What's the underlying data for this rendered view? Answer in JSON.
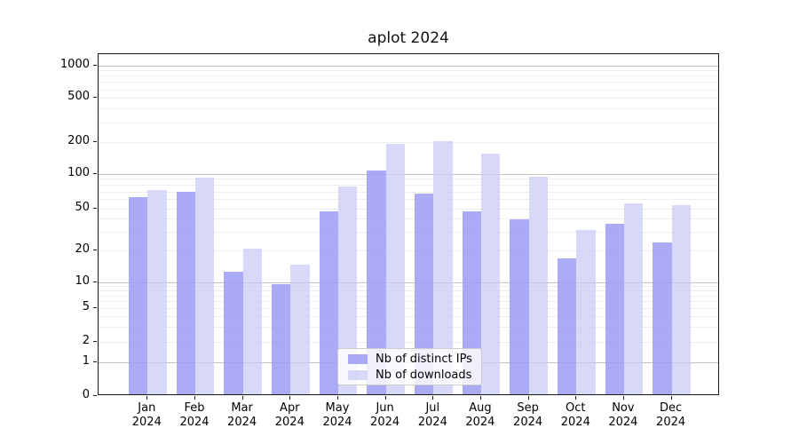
{
  "title": "aplot 2024",
  "colors": {
    "distinct_ips": "rgba(155,155,243,0.85)",
    "downloads": "rgba(199,199,247,0.70)",
    "grid_major": "#c3c3c3",
    "grid_minor": "#ededed",
    "spine": "#1a1a1a"
  },
  "legend": {
    "items": [
      {
        "label": "Nb of distinct IPs",
        "color": "rgba(155,155,243,0.85)"
      },
      {
        "label": "Nb of downloads",
        "color": "rgba(199,199,247,0.70)"
      }
    ]
  },
  "x_axis": {
    "months": [
      "Jan",
      "Feb",
      "Mar",
      "Apr",
      "May",
      "Jun",
      "Jul",
      "Aug",
      "Sep",
      "Oct",
      "Nov",
      "Dec"
    ],
    "year": "2024"
  },
  "y_axis": {
    "tick_labels": [
      "0",
      "1",
      "2",
      "5",
      "10",
      "20",
      "50",
      "100",
      "200",
      "500",
      "1000"
    ],
    "tick_values": [
      0,
      1,
      2,
      5,
      10,
      20,
      50,
      100,
      200,
      500,
      1000
    ]
  },
  "chart_data": {
    "type": "bar",
    "title": "aplot 2024",
    "categories": [
      "Jan 2024",
      "Feb 2024",
      "Mar 2024",
      "Apr 2024",
      "May 2024",
      "Jun 2024",
      "Jul 2024",
      "Aug 2024",
      "Sep 2024",
      "Oct 2024",
      "Nov 2024",
      "Dec 2024"
    ],
    "series": [
      {
        "name": "Nb of distinct IPs",
        "values": [
          60,
          67,
          12,
          9,
          45,
          104,
          65,
          45,
          38,
          16,
          34,
          23
        ]
      },
      {
        "name": "Nb of downloads",
        "values": [
          70,
          89,
          20,
          14,
          74,
          186,
          195,
          148,
          91,
          30,
          53,
          51
        ]
      }
    ],
    "xlabel": "",
    "ylabel": "",
    "y_scale": "symlog-like (log above 1, linear 0-1)",
    "yticks": [
      0,
      1,
      2,
      5,
      10,
      20,
      50,
      100,
      200,
      500,
      1000
    ],
    "ylim": [
      0,
      1260
    ],
    "grid": "horizontal major and log-minor lines",
    "legend_position": "lower center inside plot"
  }
}
